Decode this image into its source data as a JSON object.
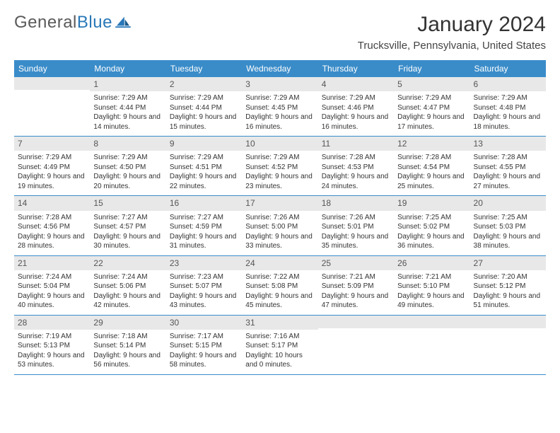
{
  "brand": {
    "part1": "General",
    "part2": "Blue"
  },
  "title": "January 2024",
  "location": "Trucksville, Pennsylvania, United States",
  "colors": {
    "header_bg": "#3a8cc9",
    "daynum_bg": "#e8e8e8",
    "rule": "#3a8cc9",
    "logo_blue": "#2878b8"
  },
  "weekdays": [
    "Sunday",
    "Monday",
    "Tuesday",
    "Wednesday",
    "Thursday",
    "Friday",
    "Saturday"
  ],
  "weeks": [
    [
      null,
      {
        "n": "1",
        "sr": "7:29 AM",
        "ss": "4:44 PM",
        "dl": "9 hours and 14 minutes."
      },
      {
        "n": "2",
        "sr": "7:29 AM",
        "ss": "4:44 PM",
        "dl": "9 hours and 15 minutes."
      },
      {
        "n": "3",
        "sr": "7:29 AM",
        "ss": "4:45 PM",
        "dl": "9 hours and 16 minutes."
      },
      {
        "n": "4",
        "sr": "7:29 AM",
        "ss": "4:46 PM",
        "dl": "9 hours and 16 minutes."
      },
      {
        "n": "5",
        "sr": "7:29 AM",
        "ss": "4:47 PM",
        "dl": "9 hours and 17 minutes."
      },
      {
        "n": "6",
        "sr": "7:29 AM",
        "ss": "4:48 PM",
        "dl": "9 hours and 18 minutes."
      }
    ],
    [
      {
        "n": "7",
        "sr": "7:29 AM",
        "ss": "4:49 PM",
        "dl": "9 hours and 19 minutes."
      },
      {
        "n": "8",
        "sr": "7:29 AM",
        "ss": "4:50 PM",
        "dl": "9 hours and 20 minutes."
      },
      {
        "n": "9",
        "sr": "7:29 AM",
        "ss": "4:51 PM",
        "dl": "9 hours and 22 minutes."
      },
      {
        "n": "10",
        "sr": "7:29 AM",
        "ss": "4:52 PM",
        "dl": "9 hours and 23 minutes."
      },
      {
        "n": "11",
        "sr": "7:28 AM",
        "ss": "4:53 PM",
        "dl": "9 hours and 24 minutes."
      },
      {
        "n": "12",
        "sr": "7:28 AM",
        "ss": "4:54 PM",
        "dl": "9 hours and 25 minutes."
      },
      {
        "n": "13",
        "sr": "7:28 AM",
        "ss": "4:55 PM",
        "dl": "9 hours and 27 minutes."
      }
    ],
    [
      {
        "n": "14",
        "sr": "7:28 AM",
        "ss": "4:56 PM",
        "dl": "9 hours and 28 minutes."
      },
      {
        "n": "15",
        "sr": "7:27 AM",
        "ss": "4:57 PM",
        "dl": "9 hours and 30 minutes."
      },
      {
        "n": "16",
        "sr": "7:27 AM",
        "ss": "4:59 PM",
        "dl": "9 hours and 31 minutes."
      },
      {
        "n": "17",
        "sr": "7:26 AM",
        "ss": "5:00 PM",
        "dl": "9 hours and 33 minutes."
      },
      {
        "n": "18",
        "sr": "7:26 AM",
        "ss": "5:01 PM",
        "dl": "9 hours and 35 minutes."
      },
      {
        "n": "19",
        "sr": "7:25 AM",
        "ss": "5:02 PM",
        "dl": "9 hours and 36 minutes."
      },
      {
        "n": "20",
        "sr": "7:25 AM",
        "ss": "5:03 PM",
        "dl": "9 hours and 38 minutes."
      }
    ],
    [
      {
        "n": "21",
        "sr": "7:24 AM",
        "ss": "5:04 PM",
        "dl": "9 hours and 40 minutes."
      },
      {
        "n": "22",
        "sr": "7:24 AM",
        "ss": "5:06 PM",
        "dl": "9 hours and 42 minutes."
      },
      {
        "n": "23",
        "sr": "7:23 AM",
        "ss": "5:07 PM",
        "dl": "9 hours and 43 minutes."
      },
      {
        "n": "24",
        "sr": "7:22 AM",
        "ss": "5:08 PM",
        "dl": "9 hours and 45 minutes."
      },
      {
        "n": "25",
        "sr": "7:21 AM",
        "ss": "5:09 PM",
        "dl": "9 hours and 47 minutes."
      },
      {
        "n": "26",
        "sr": "7:21 AM",
        "ss": "5:10 PM",
        "dl": "9 hours and 49 minutes."
      },
      {
        "n": "27",
        "sr": "7:20 AM",
        "ss": "5:12 PM",
        "dl": "9 hours and 51 minutes."
      }
    ],
    [
      {
        "n": "28",
        "sr": "7:19 AM",
        "ss": "5:13 PM",
        "dl": "9 hours and 53 minutes."
      },
      {
        "n": "29",
        "sr": "7:18 AM",
        "ss": "5:14 PM",
        "dl": "9 hours and 56 minutes."
      },
      {
        "n": "30",
        "sr": "7:17 AM",
        "ss": "5:15 PM",
        "dl": "9 hours and 58 minutes."
      },
      {
        "n": "31",
        "sr": "7:16 AM",
        "ss": "5:17 PM",
        "dl": "10 hours and 0 minutes."
      },
      null,
      null,
      null
    ]
  ]
}
